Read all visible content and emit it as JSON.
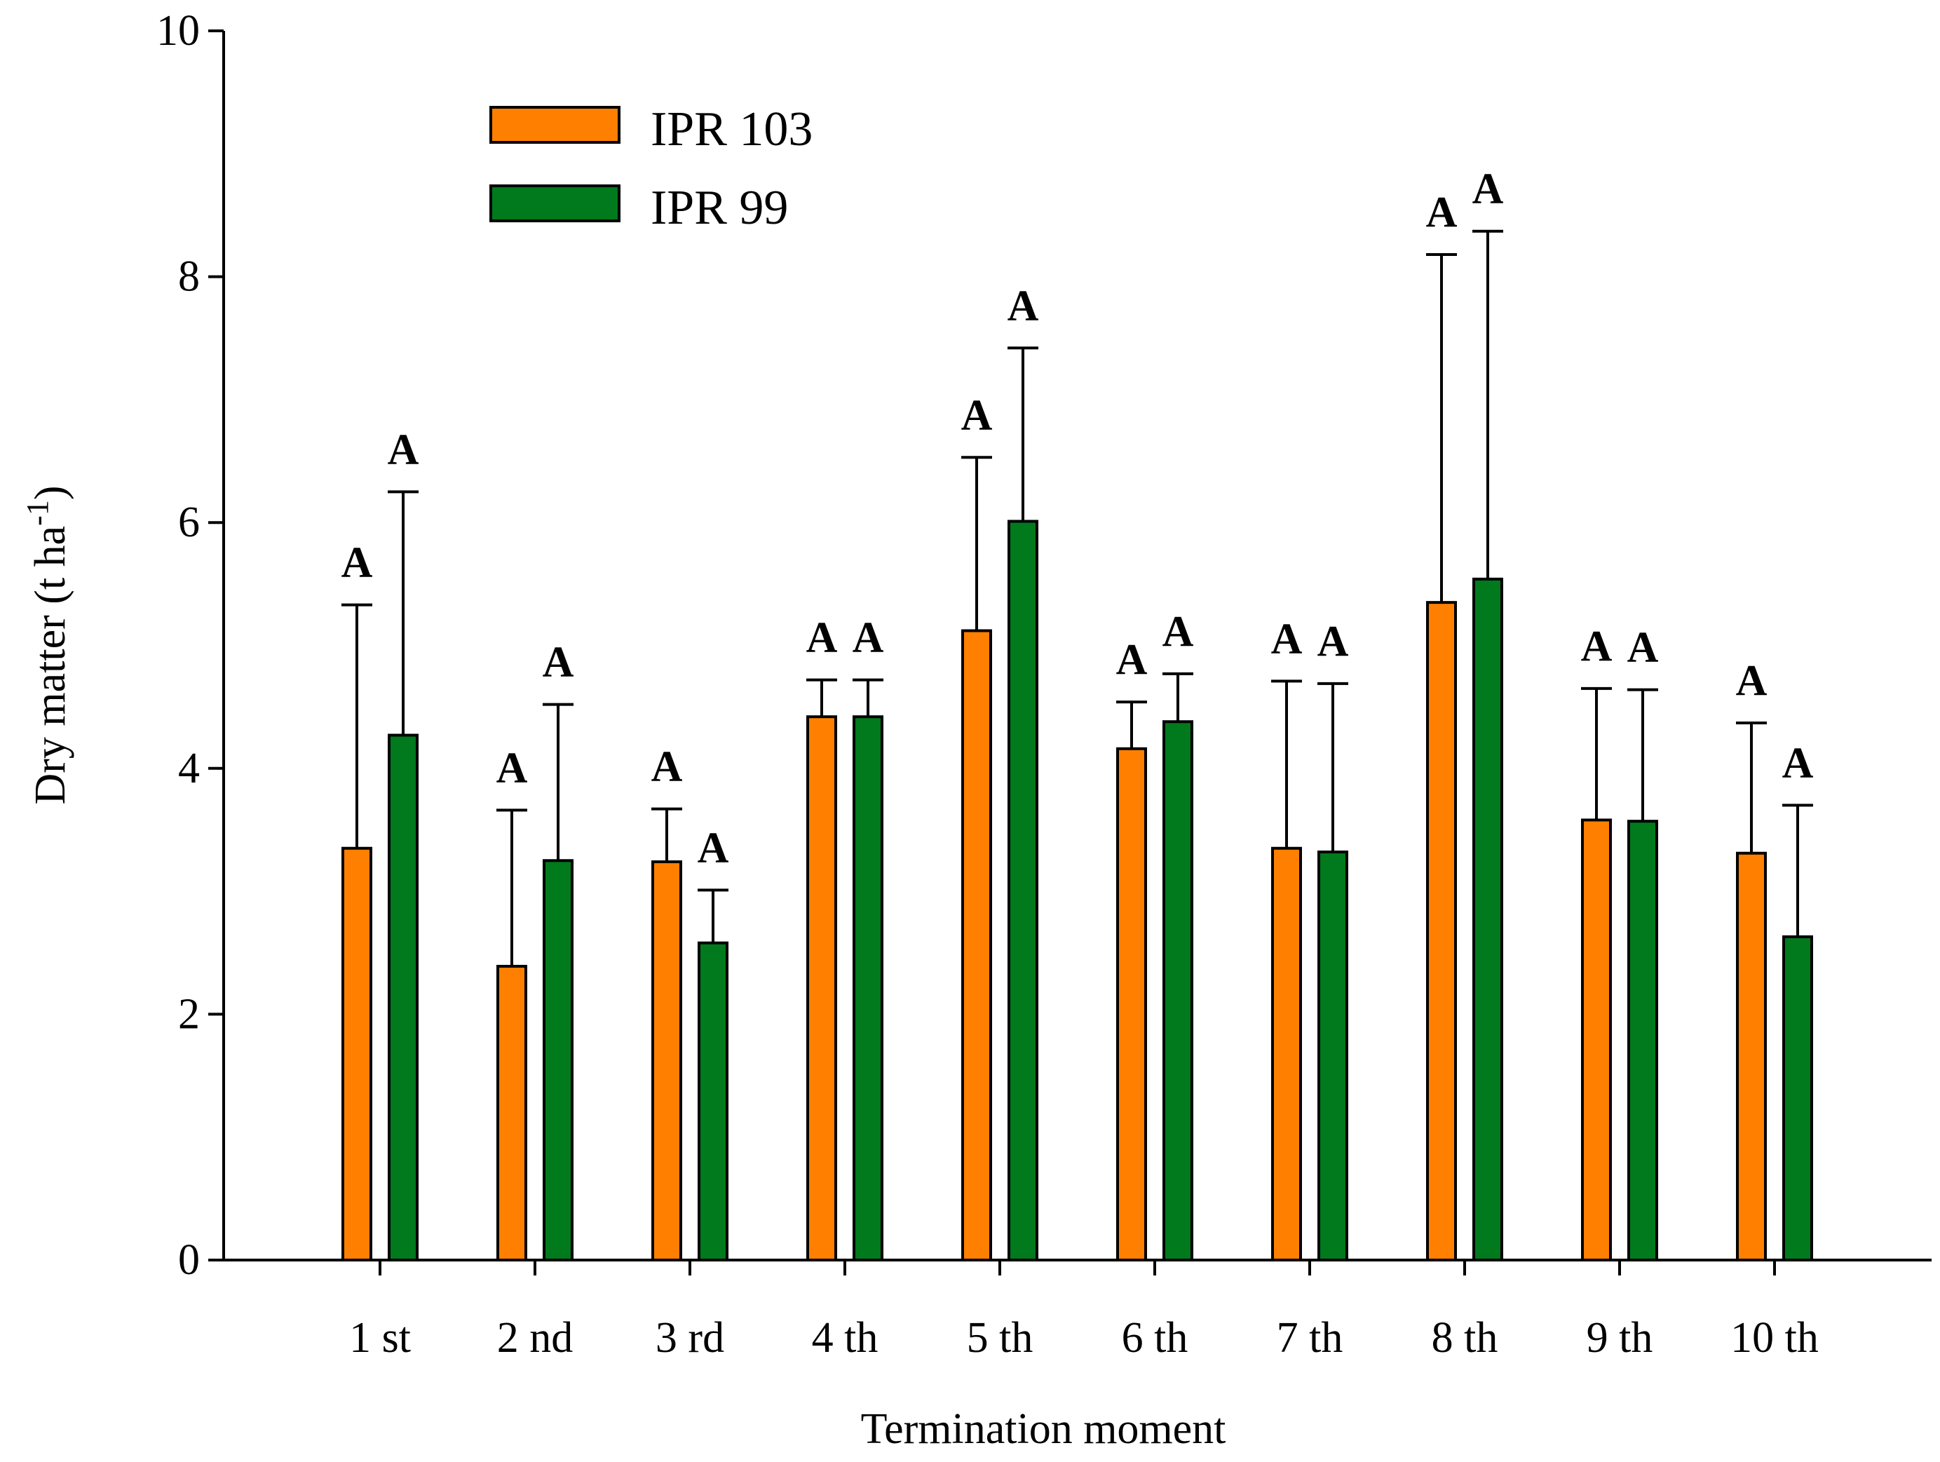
{
  "chart_data": {
    "type": "bar",
    "title": "",
    "xlabel": "Termination moment",
    "ylabel": "Dry matter (t ha",
    "ylabel_superscript": "-1",
    "ylabel_close": ")",
    "ylim": [
      0,
      10
    ],
    "yticks": [
      "0",
      "2",
      "4",
      "6",
      "8",
      "10"
    ],
    "ytick_values": [
      0,
      2,
      4,
      6,
      8,
      10
    ],
    "categories": [
      "1 st",
      "2 nd",
      "3 rd",
      "4 th",
      "5 th",
      "6 th",
      "7 th",
      "8 th",
      "9 th",
      "10 th"
    ],
    "legend_position": "top-left",
    "series": [
      {
        "name": "IPR 103",
        "color": "#FF8000",
        "values": [
          3.35,
          2.39,
          3.24,
          4.42,
          5.12,
          4.16,
          3.35,
          5.35,
          3.58,
          3.31
        ],
        "error_upper": [
          5.33,
          3.66,
          3.67,
          4.72,
          6.53,
          4.54,
          4.71,
          8.18,
          4.65,
          4.37
        ],
        "labels": [
          "A",
          "A",
          "A",
          "A",
          "A",
          "A",
          "A",
          "A",
          "A",
          "A"
        ]
      },
      {
        "name": "IPR 99",
        "color": "#007A1C",
        "values": [
          4.27,
          3.25,
          2.58,
          4.42,
          6.01,
          4.38,
          3.32,
          5.54,
          3.57,
          2.63
        ],
        "error_upper": [
          6.25,
          4.52,
          3.01,
          4.72,
          7.42,
          4.77,
          4.69,
          8.37,
          4.64,
          3.7
        ],
        "labels": [
          "A",
          "A",
          "A",
          "A",
          "A",
          "A",
          "A",
          "A",
          "A",
          "A"
        ]
      }
    ]
  }
}
